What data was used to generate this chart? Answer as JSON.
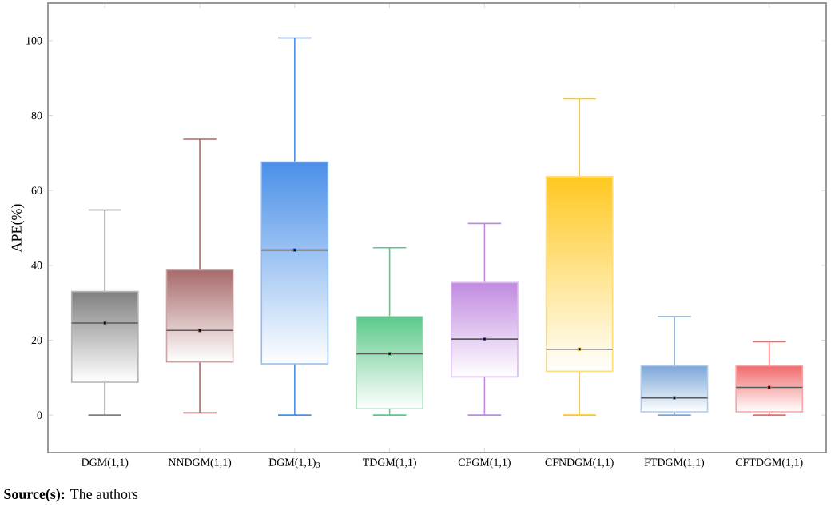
{
  "chart_data": {
    "type": "box",
    "ylabel": "APE(%)",
    "categories": [
      "DGM(1,1)",
      "NNDGM(1,1)",
      "DGM(1,1)$_{3}$",
      "TDGM(1,1)",
      "CFGM(1,1)",
      "CFNDGM(1,1)",
      "FTDGM(1,1)",
      "CFTDGM(1,1)"
    ],
    "colors": [
      "#808080",
      "#a86a6a",
      "#4a90e8",
      "#5cc98a",
      "#c08ae0",
      "#ffc820",
      "#7aa6d8",
      "#f06a6a"
    ],
    "boxes": [
      {
        "low": 0,
        "q1": 8.8,
        "median": 24.6,
        "q3": 33.0,
        "high": 54.8,
        "mean": 24.6
      },
      {
        "low": 0.6,
        "q1": 14.2,
        "median": 22.6,
        "q3": 38.8,
        "high": 73.7,
        "mean": 22.6
      },
      {
        "low": 0,
        "q1": 13.7,
        "median": 44.1,
        "q3": 67.6,
        "high": 100.7,
        "mean": 44.1
      },
      {
        "low": 0,
        "q1": 1.7,
        "median": 16.4,
        "q3": 26.3,
        "high": 44.7,
        "mean": 16.4
      },
      {
        "low": 0,
        "q1": 10.2,
        "median": 20.3,
        "q3": 35.4,
        "high": 51.2,
        "mean": 20.3
      },
      {
        "low": 0,
        "q1": 11.7,
        "median": 17.6,
        "q3": 63.7,
        "high": 84.5,
        "mean": 17.6
      },
      {
        "low": 0,
        "q1": 0.9,
        "median": 4.6,
        "q3": 13.2,
        "high": 26.3,
        "mean": 4.6
      },
      {
        "low": 0,
        "q1": 0.9,
        "median": 7.4,
        "q3": 13.2,
        "high": 19.6,
        "mean": 7.4
      }
    ],
    "ylim": [
      -10,
      110
    ],
    "yticks": [
      0,
      20,
      40,
      60,
      80,
      100
    ],
    "grid": false,
    "annotations": [
      "**Source(s):** The authors"
    ]
  }
}
